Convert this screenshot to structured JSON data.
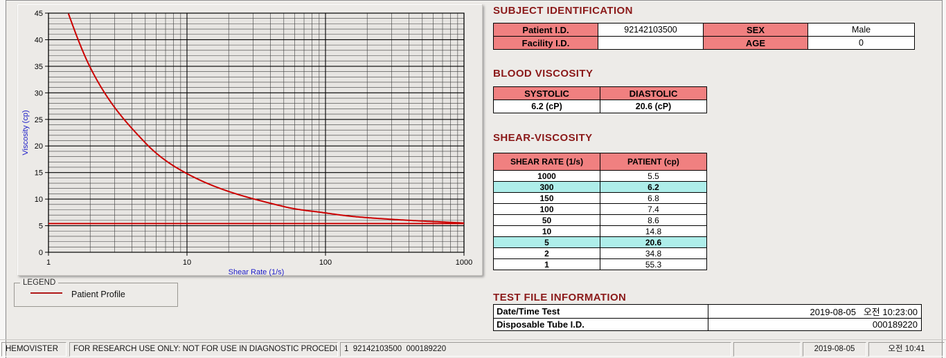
{
  "window": {
    "app_name": "HEMOVISTER"
  },
  "colors": {
    "section_title": "#8b1a1a",
    "table_header_bg": "#f08080",
    "highlight_bg": "#aeeeea",
    "curve_red": "#cc0000",
    "axis_label_blue": "#1a1ac8",
    "plot_background": "#e7e5e2"
  },
  "chart_data": {
    "type": "line",
    "title": "",
    "xlabel": "Shear Rate (1/s)",
    "ylabel": "Viscosity (cp)",
    "x_scale": "log",
    "xlim": [
      1,
      1000
    ],
    "ylim": [
      0,
      45
    ],
    "x_ticks": [
      1,
      10,
      100,
      1000
    ],
    "y_ticks": [
      0,
      5,
      10,
      15,
      20,
      25,
      30,
      35,
      40,
      45
    ],
    "y_minor_step": 1,
    "grid": "major+minor",
    "legend_position": "below-left",
    "series": [
      {
        "name": "Patient Profile",
        "color": "#cc0000",
        "x": [
          1,
          2,
          5,
          10,
          50,
          100,
          150,
          300,
          1000
        ],
        "y": [
          55.3,
          34.8,
          20.6,
          14.8,
          8.6,
          7.4,
          6.8,
          6.2,
          5.5
        ]
      }
    ],
    "reference_line": {
      "y": 5.4,
      "color": "#cc0000"
    }
  },
  "legend": {
    "box_label": "LEGEND",
    "entries": [
      {
        "label": "Patient Profile",
        "color": "#b01818"
      }
    ]
  },
  "subject_identification": {
    "title": "SUBJECT IDENTIFICATION",
    "patient_id_label": "Patient I.D.",
    "patient_id": "92142103500",
    "sex_label": "SEX",
    "sex": "Male",
    "facility_id_label": "Facility I.D.",
    "facility_id": "",
    "age_label": "AGE",
    "age": "0"
  },
  "blood_viscosity": {
    "title": "BLOOD VISCOSITY",
    "systolic_label": "SYSTOLIC",
    "diastolic_label": "DIASTOLIC",
    "systolic_value": "6.2 (cP)",
    "diastolic_value": "20.6 (cP)"
  },
  "shear_viscosity": {
    "title": "SHEAR-VISCOSITY",
    "col_shear": "SHEAR RATE (1/s)",
    "col_patient": "PATIENT (cp)",
    "rows": [
      {
        "shear": "1000",
        "patient": "5.5",
        "highlight": false
      },
      {
        "shear": "300",
        "patient": "6.2",
        "highlight": true
      },
      {
        "shear": "150",
        "patient": "6.8",
        "highlight": false
      },
      {
        "shear": "100",
        "patient": "7.4",
        "highlight": false
      },
      {
        "shear": "50",
        "patient": "8.6",
        "highlight": false
      },
      {
        "shear": "10",
        "patient": "14.8",
        "highlight": false
      },
      {
        "shear": "5",
        "patient": "20.6",
        "highlight": true
      },
      {
        "shear": "2",
        "patient": "34.8",
        "highlight": false
      },
      {
        "shear": "1",
        "patient": "55.3",
        "highlight": false
      }
    ]
  },
  "test_file_information": {
    "title": "TEST FILE INFORMATION",
    "date_label": "Date/Time Test",
    "date_value": "2019-08-05   오전 10:23:00",
    "tube_label": "Disposable Tube I.D.",
    "tube_value": "000189220"
  },
  "status_bar": {
    "app": "HEMOVISTER",
    "notice": "FOR RESEARCH USE ONLY: NOT FOR USE IN DIAGNOSTIC PROCEDURES",
    "context": "1  92142103500  000189220",
    "blank": "",
    "date": "2019-08-05",
    "time": "오전 10:41"
  }
}
